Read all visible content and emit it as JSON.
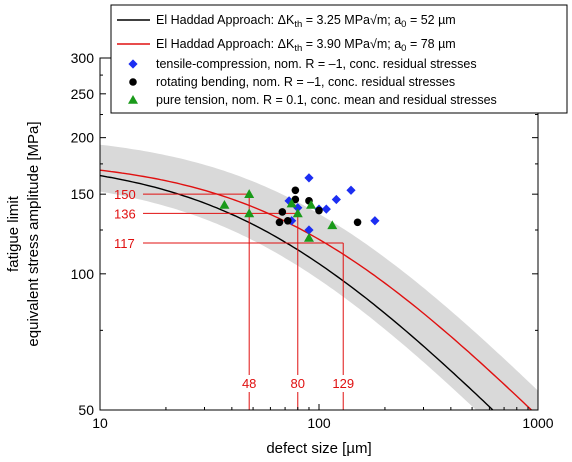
{
  "chart_data": {
    "type": "scatter",
    "x_scale": "log",
    "y_scale": "log",
    "xlim": [
      10,
      1000
    ],
    "ylim": [
      50,
      300
    ],
    "xlabel": "defect size [µm]",
    "ylabel": [
      "fatigue limit",
      "equivalent stress amplitude [MPa]"
    ],
    "x_ticks": [
      {
        "value": 10,
        "label": "10"
      },
      {
        "value": 100,
        "label": "100"
      },
      {
        "value": 1000,
        "label": "1000"
      }
    ],
    "y_ticks": [
      {
        "value": 50,
        "label": "50"
      },
      {
        "value": 100,
        "label": "100"
      },
      {
        "value": 150,
        "label": "150"
      },
      {
        "value": 200,
        "label": "200"
      },
      {
        "value": 250,
        "label": "250"
      },
      {
        "value": 300,
        "label": "300"
      }
    ],
    "grid": false,
    "legend_position": "top",
    "lines": [
      {
        "name": "El Haddad Approach: ΔKth = 3.25 MPa√m; a0 = 52 µm",
        "legend": {
          "pre": "El Haddad Approach: ΔK",
          "sub": "th",
          "mid": " = 3.25 MPa√m; a",
          "sub2": "0",
          "post": " = 52 µm"
        },
        "color": "#000000",
        "sigma0": 180,
        "a0": 52
      },
      {
        "name": "El Haddad Approach: ΔKth = 3.90 MPa√m; a0 = 78 µm",
        "legend": {
          "pre": "El Haddad Approach: ΔK",
          "sub": "th",
          "mid": " = 3.90 MPa√m; a",
          "sub2": "0",
          "post": " = 78 µm"
        },
        "color": "#e01010",
        "sigma0": 180,
        "a0": 78
      }
    ],
    "band": {
      "color": "#d9d9d9",
      "sigma0_upper": 205,
      "a0_upper": 78,
      "sigma0_lower": 166,
      "a0_lower": 52
    },
    "series": [
      {
        "name": "tensile-compression, nom. R = –1, conc. residual stresses",
        "marker": "diamond",
        "color": "#1c2ef2",
        "points": [
          [
            90,
            163
          ],
          [
            140,
            153
          ],
          [
            120,
            146
          ],
          [
            108,
            139
          ],
          [
            73,
            145
          ],
          [
            80,
            140
          ],
          [
            90,
            125
          ],
          [
            75,
            131
          ],
          [
            100,
            139
          ],
          [
            180,
            131
          ]
        ]
      },
      {
        "name": "rotating bending,  nom. R = –1, conc. residual stresses",
        "marker": "circle",
        "color": "#000000",
        "points": [
          [
            66,
            130
          ],
          [
            68,
            137
          ],
          [
            72,
            131
          ],
          [
            78,
            153
          ],
          [
            78,
            146
          ],
          [
            90,
            145
          ],
          [
            100,
            138
          ],
          [
            150,
            130
          ]
        ]
      },
      {
        "name": "pure tension, nom. R = 0.1, conc. mean and residual stresses",
        "marker": "triangle",
        "color": "#1a9a1a",
        "points": [
          [
            37,
            142
          ],
          [
            48,
            150
          ],
          [
            48,
            136
          ],
          [
            75,
            143
          ],
          [
            80,
            136
          ],
          [
            90,
            120
          ],
          [
            92,
            142
          ],
          [
            115,
            128
          ]
        ]
      }
    ],
    "annotations": {
      "color": "#e01010",
      "y_values": [
        {
          "value": 150,
          "label": "150",
          "x_end": 48
        },
        {
          "value": 136,
          "label": "136",
          "x_end": 80
        },
        {
          "value": 117,
          "label": "117",
          "x_end": 129
        }
      ],
      "x_values": [
        {
          "value": 48,
          "label": "48",
          "y_top": 150
        },
        {
          "value": 80,
          "label": "80",
          "y_top": 136
        },
        {
          "value": 129,
          "label": "129",
          "y_top": 117
        }
      ]
    }
  }
}
